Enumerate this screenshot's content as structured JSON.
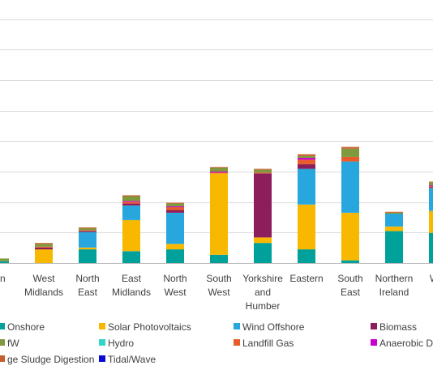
{
  "chart_data": {
    "type": "bar",
    "stacked": true,
    "title": "",
    "xlabel": "",
    "ylabel": "",
    "grid": true,
    "legend_position": "bottom",
    "categories": [
      [
        "on"
      ],
      [
        "West",
        "Midlands"
      ],
      [
        "North",
        "East"
      ],
      [
        "East",
        "Midlands"
      ],
      [
        "North",
        "West"
      ],
      [
        "South",
        "West"
      ],
      [
        "Yorkshire",
        "and",
        "Humber"
      ],
      [
        "Eastern"
      ],
      [
        "South",
        "East"
      ],
      [
        "Northern",
        "Ireland"
      ],
      [
        "Wal"
      ]
    ],
    "series": [
      {
        "name": "Onshore",
        "color": "#00a19a",
        "values": [
          2,
          0,
          15,
          13,
          15,
          9,
          22,
          15,
          3,
          35,
          33
        ]
      },
      {
        "name": "Solar Photovoltaics",
        "color": "#f9b800",
        "values": [
          0,
          15,
          2,
          34,
          6,
          89,
          6,
          49,
          52,
          5,
          24
        ]
      },
      {
        "name": "Wind Offshore",
        "color": "#27a7de",
        "values": [
          0,
          0,
          17,
          16,
          34,
          0,
          0,
          39,
          56,
          14,
          25
        ]
      },
      {
        "name": "Biomass",
        "color": "#8b1e5b",
        "values": [
          0,
          2,
          1,
          2,
          3,
          0,
          70,
          5,
          0,
          0,
          1
        ]
      },
      {
        "name": "Hydro",
        "color": "#30d5c8",
        "values": [
          0,
          0,
          0,
          0,
          0,
          0,
          0,
          0,
          0,
          0,
          0
        ]
      },
      {
        "name": "Landfill Gas",
        "color": "#e85c2c",
        "values": [
          0,
          1,
          1,
          2,
          3,
          1,
          1,
          5,
          5,
          0,
          1
        ]
      },
      {
        "name": "Anaerobic D",
        "color": "#cc00cc",
        "values": [
          0,
          0,
          0,
          1,
          1,
          1,
          0,
          2,
          0,
          0,
          1
        ]
      },
      {
        "name": "fW",
        "color": "#7f9a3c",
        "values": [
          3,
          3,
          2,
          5,
          3,
          4,
          3,
          2,
          9,
          1,
          3
        ]
      },
      {
        "name": "ge Sludge Digestion",
        "color": "#c45f2c",
        "values": [
          0,
          1,
          1,
          1,
          1,
          1,
          1,
          2,
          2,
          1,
          1
        ]
      },
      {
        "name": "Tidal/Wave",
        "color": "#0a0ad4",
        "values": [
          0,
          0,
          0,
          0,
          0,
          0,
          0,
          0,
          0,
          0,
          0
        ]
      }
    ],
    "ylim": [
      0,
      300
    ],
    "gridlines": [
      0,
      33.33,
      66.67,
      100,
      133.33,
      166.67,
      200,
      233.33,
      266.67,
      300
    ]
  },
  "legend": {
    "items": [
      {
        "label": "Onshore",
        "color": "#00a19a"
      },
      {
        "label": "Solar Photovoltaics",
        "color": "#f9b800"
      },
      {
        "label": "Wind Offshore",
        "color": "#27a7de"
      },
      {
        "label": "Biomass",
        "color": "#8b1e5b"
      },
      {
        "label": "fW",
        "color": "#7f9a3c"
      },
      {
        "label": "Hydro",
        "color": "#30d5c8"
      },
      {
        "label": "Landfill Gas",
        "color": "#e85c2c"
      },
      {
        "label": "Anaerobic D",
        "color": "#cc00cc"
      },
      {
        "label": "ge Sludge Digestion",
        "color": "#c45f2c"
      },
      {
        "label": "Tidal/Wave",
        "color": "#0a0ad4"
      }
    ]
  }
}
